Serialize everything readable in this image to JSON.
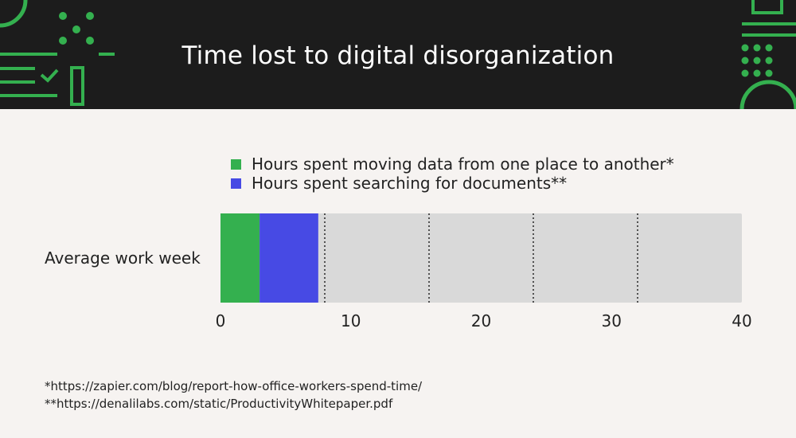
{
  "title": "Time lost to digital disorganization",
  "colors": {
    "header_bg": "#1c1c1c",
    "accent": "#34b04f",
    "series_1": "#34b04f",
    "series_2": "#474ae4",
    "track": "#d9d9d9",
    "page_bg": "#f6f3f1"
  },
  "chart_data": {
    "type": "bar",
    "orientation": "horizontal",
    "stacked": true,
    "title": "Time lost to digital disorganization",
    "categories": [
      "Average work week"
    ],
    "series": [
      {
        "name": "Hours spent moving data from one place to another*",
        "values": [
          3
        ]
      },
      {
        "name": "Hours spent searching for documents**",
        "values": [
          4.5
        ]
      }
    ],
    "total": 40,
    "xlim": [
      0,
      40
    ],
    "xticks": [
      0,
      10,
      20,
      30,
      40
    ],
    "gridlines": [
      8,
      16,
      24,
      32
    ],
    "gridline_style": "dotted",
    "legend_position": "top"
  },
  "footnotes": [
    "*https://zapier.com/blog/report-how-office-workers-spend-time/",
    "**https://denalilabs.com/static/ProductivityWhitepaper.pdf"
  ]
}
